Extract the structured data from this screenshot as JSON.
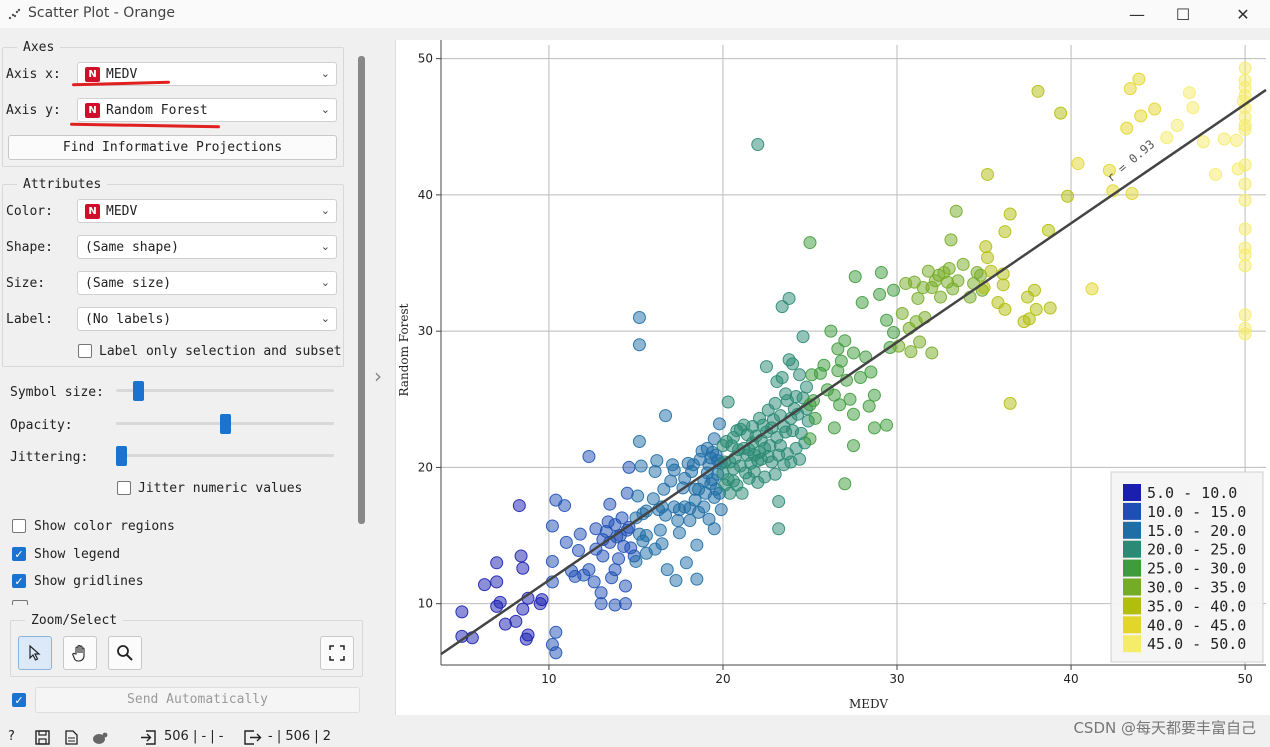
{
  "window": {
    "title": "Scatter Plot - Orange",
    "minimize_glyph": "—",
    "maximize_glyph": "☐",
    "close_glyph": "✕"
  },
  "axes_group": {
    "title": "Axes",
    "axis_x_label": "Axis x:",
    "axis_x_value": "MEDV",
    "axis_y_label": "Axis y:",
    "axis_y_value": "Random Forest",
    "type_badge": "N",
    "find_projections_label": "Find Informative Projections"
  },
  "attributes_group": {
    "title": "Attributes",
    "color_label": "Color:",
    "color_value": "MEDV",
    "shape_label": "Shape:",
    "shape_value": "(Same shape)",
    "size_label": "Size:",
    "size_value": "(Same size)",
    "label_label": "Label:",
    "label_value": "(No labels)",
    "label_only_selection": "Label only selection and subset"
  },
  "sliders": {
    "symbol_size_label": "Symbol size:",
    "symbol_size_level": 0.08,
    "opacity_label": "Opacity:",
    "opacity_level": 0.5,
    "jittering_label": "Jittering:",
    "jittering_level": 0.0,
    "jitter_numeric_label": "Jitter numeric values"
  },
  "checkboxes": {
    "show_color_regions": "Show color regions",
    "show_color_regions_checked": false,
    "show_legend": "Show legend",
    "show_legend_checked": true,
    "show_gridlines": "Show gridlines",
    "show_gridlines_checked": true
  },
  "zoom_select": {
    "title": "Zoom/Select",
    "select_icon": "cursor-arrow-icon",
    "pan_icon": "hand-icon",
    "zoom_icon": "magnifier-icon",
    "fit_icon": "fullscreen-icon"
  },
  "send": {
    "checked": true,
    "label": "Send Automatically"
  },
  "statusbar": {
    "input_summary": "506 | - | -",
    "output_summary": "- | 506 | 2"
  },
  "watermark": "CSDN @每天都要丰富自己",
  "chart_data": {
    "type": "scatter",
    "xlabel": "MEDV",
    "ylabel": "Random Forest",
    "xlim": [
      3.8,
      51.2
    ],
    "ylim": [
      5.5,
      51
    ],
    "xticks": [
      10,
      20,
      30,
      40,
      50
    ],
    "yticks": [
      10,
      20,
      30,
      40,
      50
    ],
    "grid": true,
    "regression": {
      "label": "r = 0.93",
      "x": [
        3.8,
        51.2
      ],
      "y": [
        6.3,
        47.7
      ]
    },
    "legend": {
      "placement": "bottom-right",
      "items": [
        {
          "label": "5.0 - 10.0",
          "color": "#1a1fb0"
        },
        {
          "label": "10.0 - 15.0",
          "color": "#1f4fb5"
        },
        {
          "label": "15.0 - 20.0",
          "color": "#1f6ea6"
        },
        {
          "label": "20.0 - 25.0",
          "color": "#2a8a74"
        },
        {
          "label": "25.0 - 30.0",
          "color": "#3e9c3c"
        },
        {
          "label": "30.0 - 35.0",
          "color": "#75ac25"
        },
        {
          "label": "35.0 - 40.0",
          "color": "#b2be0c"
        },
        {
          "label": "40.0 - 45.0",
          "color": "#e2d62a"
        },
        {
          "label": "45.0 - 50.0",
          "color": "#f5ec6a"
        }
      ]
    },
    "points": [
      [
        5,
        9.4
      ],
      [
        5,
        7.6
      ],
      [
        5.6,
        7.5
      ],
      [
        6.3,
        11.4
      ],
      [
        7,
        13
      ],
      [
        7,
        11.6
      ],
      [
        7.2,
        10.1
      ],
      [
        7,
        9.8
      ],
      [
        7.5,
        8.5
      ],
      [
        8.4,
        13.5
      ],
      [
        8.3,
        17.2
      ],
      [
        8.5,
        12.6
      ],
      [
        8.8,
        10.4
      ],
      [
        8.5,
        9.6
      ],
      [
        8.1,
        8.7
      ],
      [
        8.7,
        7.4
      ],
      [
        8.8,
        7.7
      ],
      [
        9.5,
        10
      ],
      [
        9.6,
        10.3
      ],
      [
        10.2,
        11.6
      ],
      [
        10.2,
        7
      ],
      [
        10.4,
        7.9
      ],
      [
        10.4,
        6.4
      ],
      [
        10.2,
        13.1
      ],
      [
        10.2,
        15.7
      ],
      [
        10.4,
        17.6
      ],
      [
        10.9,
        17.2
      ],
      [
        11,
        14.5
      ],
      [
        11.3,
        12.4
      ],
      [
        11.5,
        12
      ],
      [
        11.7,
        13.9
      ],
      [
        11.8,
        15.1
      ],
      [
        12,
        12.1
      ],
      [
        12.3,
        12.5
      ],
      [
        12.3,
        20.8
      ],
      [
        12.6,
        11.6
      ],
      [
        12.7,
        15.5
      ],
      [
        12.7,
        14
      ],
      [
        13,
        10
      ],
      [
        13,
        10.8
      ],
      [
        13.1,
        14.7
      ],
      [
        13.1,
        13.5
      ],
      [
        13.3,
        15.3
      ],
      [
        13.4,
        16
      ],
      [
        13.5,
        17.3
      ],
      [
        13.5,
        14.5
      ],
      [
        13.6,
        11.9
      ],
      [
        13.8,
        12.5
      ],
      [
        13.8,
        15.8
      ],
      [
        13.8,
        9.9
      ],
      [
        13.9,
        14.9
      ],
      [
        14,
        13.3
      ],
      [
        14.1,
        15
      ],
      [
        14.2,
        16.3
      ],
      [
        14.3,
        14.2
      ],
      [
        14.4,
        11.3
      ],
      [
        14.4,
        10
      ],
      [
        14.5,
        15.4
      ],
      [
        14.5,
        18.1
      ],
      [
        14.6,
        15.6
      ],
      [
        14.6,
        20
      ],
      [
        14.7,
        14.1
      ],
      [
        14.9,
        13.5
      ],
      [
        15,
        16.3
      ],
      [
        15,
        13.1
      ],
      [
        15.1,
        17.9
      ],
      [
        15.2,
        15.1
      ],
      [
        15.2,
        21.9
      ],
      [
        15.2,
        31
      ],
      [
        15.2,
        29
      ],
      [
        15.3,
        20.1
      ],
      [
        15.4,
        16.6
      ],
      [
        15.4,
        14.6
      ],
      [
        15.6,
        13.7
      ],
      [
        15.6,
        16.8
      ],
      [
        15.6,
        15
      ],
      [
        16,
        17.7
      ],
      [
        16.1,
        19.7
      ],
      [
        16.1,
        14
      ],
      [
        16.2,
        20.5
      ],
      [
        16.3,
        16.9
      ],
      [
        16.4,
        15.4
      ],
      [
        16.5,
        17.1
      ],
      [
        16.5,
        14.4
      ],
      [
        16.6,
        18.4
      ],
      [
        16.7,
        23.8
      ],
      [
        16.7,
        16.5
      ],
      [
        16.8,
        12.5
      ],
      [
        17,
        19
      ],
      [
        17.1,
        20.2
      ],
      [
        17.2,
        17.1
      ],
      [
        17.2,
        19.8
      ],
      [
        17.3,
        11.7
      ],
      [
        17.4,
        16.1
      ],
      [
        17.5,
        16.9
      ],
      [
        17.5,
        15.2
      ],
      [
        17.7,
        18.5
      ],
      [
        17.8,
        19.2
      ],
      [
        17.8,
        17.1
      ],
      [
        17.9,
        13
      ],
      [
        18,
        20.3
      ],
      [
        18.1,
        17
      ],
      [
        18.1,
        16.1
      ],
      [
        18.2,
        19.7
      ],
      [
        18.3,
        20.2
      ],
      [
        18.4,
        18.4
      ],
      [
        18.4,
        17.6
      ],
      [
        18.5,
        14.3
      ],
      [
        18.5,
        11.8
      ],
      [
        18.6,
        16.7
      ],
      [
        18.6,
        18.4
      ],
      [
        18.7,
        20.6
      ],
      [
        18.8,
        21.2
      ],
      [
        18.9,
        19
      ],
      [
        18.9,
        17.1
      ],
      [
        19,
        18.1
      ],
      [
        19.1,
        21.4
      ],
      [
        19.1,
        19.6
      ],
      [
        19.2,
        20.2
      ],
      [
        19.2,
        16.2
      ],
      [
        19.3,
        20.7
      ],
      [
        19.3,
        18.8
      ],
      [
        19.4,
        21.1
      ],
      [
        19.4,
        19.1
      ],
      [
        19.5,
        22.1
      ],
      [
        19.5,
        17.8
      ],
      [
        19.5,
        15.5
      ],
      [
        19.6,
        20.9
      ],
      [
        19.6,
        18.4
      ],
      [
        19.7,
        19.5
      ],
      [
        19.7,
        20.5
      ],
      [
        19.8,
        23.2
      ],
      [
        19.8,
        18.1
      ],
      [
        19.9,
        20.3
      ],
      [
        19.9,
        16.9
      ],
      [
        20,
        19.6
      ],
      [
        20,
        21.6
      ],
      [
        20.1,
        20.4
      ],
      [
        20.1,
        18.7
      ],
      [
        20.2,
        21.9
      ],
      [
        20.3,
        19.1
      ],
      [
        20.3,
        24.8
      ],
      [
        20.4,
        20.4
      ],
      [
        20.4,
        18.1
      ],
      [
        20.5,
        21.6
      ],
      [
        20.6,
        22.2
      ],
      [
        20.6,
        19.9
      ],
      [
        20.6,
        19
      ],
      [
        20.7,
        20.7
      ],
      [
        20.8,
        22.7
      ],
      [
        20.8,
        18.7
      ],
      [
        20.9,
        21.3
      ],
      [
        21,
        20.1
      ],
      [
        21,
        22.8
      ],
      [
        21.1,
        18.1
      ],
      [
        21.2,
        21.4
      ],
      [
        21.2,
        23.1
      ],
      [
        21.3,
        19.6
      ],
      [
        21.4,
        20.9
      ],
      [
        21.4,
        22.4
      ],
      [
        21.5,
        21.3
      ],
      [
        21.5,
        19.2
      ],
      [
        21.6,
        20.3
      ],
      [
        21.7,
        23
      ],
      [
        21.7,
        21.8
      ],
      [
        21.8,
        19.7
      ],
      [
        21.8,
        20.9
      ],
      [
        21.9,
        22.3
      ],
      [
        22,
        20.5
      ],
      [
        22,
        43.7
      ],
      [
        22,
        18.9
      ],
      [
        22.1,
        23.6
      ],
      [
        22.1,
        21.1
      ],
      [
        22.2,
        20.6
      ],
      [
        22.2,
        22
      ],
      [
        22.3,
        23.1
      ],
      [
        22.4,
        21.4
      ],
      [
        22.4,
        19.3
      ],
      [
        22.5,
        27.4
      ],
      [
        22.5,
        22.6
      ],
      [
        22.6,
        20.8
      ],
      [
        22.6,
        24.2
      ],
      [
        22.7,
        21.6
      ],
      [
        22.8,
        22.9
      ],
      [
        22.8,
        20.4
      ],
      [
        22.9,
        23.5
      ],
      [
        23,
        19.5
      ],
      [
        23,
        24.7
      ],
      [
        23.1,
        22.2
      ],
      [
        23.1,
        26.3
      ],
      [
        23.2,
        20.9
      ],
      [
        23.2,
        15.5
      ],
      [
        23.2,
        17.5
      ],
      [
        23.3,
        23.8
      ],
      [
        23.3,
        21.6
      ],
      [
        23.4,
        31.8
      ],
      [
        23.4,
        26.6
      ],
      [
        23.5,
        23
      ],
      [
        23.5,
        20.2
      ],
      [
        23.6,
        25.4
      ],
      [
        23.6,
        22.6
      ],
      [
        23.7,
        24.9
      ],
      [
        23.7,
        21
      ],
      [
        23.8,
        32.4
      ],
      [
        23.8,
        27.9
      ],
      [
        23.9,
        23.6
      ],
      [
        23.9,
        20.4
      ],
      [
        24,
        27.6
      ],
      [
        24,
        22.7
      ],
      [
        24.1,
        24.3
      ],
      [
        24.2,
        25.2
      ],
      [
        24.2,
        21.4
      ],
      [
        24.3,
        23.9
      ],
      [
        24.4,
        26.8
      ],
      [
        24.4,
        20.6
      ],
      [
        24.5,
        22.5
      ],
      [
        24.6,
        25.1
      ],
      [
        24.6,
        29.6
      ],
      [
        24.7,
        21.8
      ],
      [
        24.8,
        24.3
      ],
      [
        24.8,
        25.9
      ],
      [
        24.9,
        23.4
      ],
      [
        25,
        36.5
      ],
      [
        25,
        24.6
      ],
      [
        25,
        22.1
      ],
      [
        25.1,
        26.8
      ],
      [
        25.2,
        24.9
      ],
      [
        25.3,
        23.6
      ],
      [
        25.6,
        26.9
      ],
      [
        25.8,
        27.5
      ],
      [
        26,
        25.7
      ],
      [
        26.2,
        30
      ],
      [
        26.4,
        25.3
      ],
      [
        26.4,
        22.9
      ],
      [
        26.6,
        28.7
      ],
      [
        26.6,
        27.1
      ],
      [
        26.7,
        24.6
      ],
      [
        26.8,
        27.8
      ],
      [
        27,
        29.3
      ],
      [
        27,
        18.8
      ],
      [
        27.1,
        26.4
      ],
      [
        27.3,
        25
      ],
      [
        27.5,
        28.4
      ],
      [
        27.5,
        23.9
      ],
      [
        27.5,
        21.6
      ],
      [
        27.6,
        34
      ],
      [
        27.9,
        26.6
      ],
      [
        28,
        32.1
      ],
      [
        28.2,
        28.1
      ],
      [
        28.4,
        24.5
      ],
      [
        28.5,
        27
      ],
      [
        28.7,
        25.3
      ],
      [
        28.7,
        22.9
      ],
      [
        29,
        32.7
      ],
      [
        29.1,
        34.3
      ],
      [
        29.4,
        23.1
      ],
      [
        29.4,
        30.8
      ],
      [
        29.6,
        28.8
      ],
      [
        29.8,
        33
      ],
      [
        29.8,
        29.9
      ],
      [
        30.1,
        28.9
      ],
      [
        30.3,
        31.3
      ],
      [
        30.5,
        33.5
      ],
      [
        30.7,
        30.2
      ],
      [
        30.8,
        28.5
      ],
      [
        31,
        33.6
      ],
      [
        31.1,
        30.7
      ],
      [
        31.2,
        32.4
      ],
      [
        31.3,
        29.2
      ],
      [
        31.5,
        33.2
      ],
      [
        31.6,
        31
      ],
      [
        31.8,
        34.4
      ],
      [
        32,
        33.2
      ],
      [
        32,
        28.4
      ],
      [
        32.2,
        33.7
      ],
      [
        32.4,
        34.1
      ],
      [
        32.5,
        32.5
      ],
      [
        32.7,
        34.3
      ],
      [
        32.9,
        33.6
      ],
      [
        33,
        34.6
      ],
      [
        33.1,
        36.7
      ],
      [
        33.2,
        33.1
      ],
      [
        33.4,
        38.8
      ],
      [
        33.5,
        33.7
      ],
      [
        33.8,
        34.9
      ],
      [
        34.2,
        32.5
      ],
      [
        34.4,
        33.5
      ],
      [
        34.6,
        34.3
      ],
      [
        34.8,
        34.1
      ],
      [
        34.9,
        33
      ],
      [
        35,
        33.2
      ],
      [
        35.1,
        36.2
      ],
      [
        35.2,
        35.4
      ],
      [
        35.2,
        41.5
      ],
      [
        35.4,
        34.4
      ],
      [
        35.8,
        32.1
      ],
      [
        36.1,
        33.4
      ],
      [
        36.1,
        34.2
      ],
      [
        36.2,
        37.3
      ],
      [
        36.2,
        31.6
      ],
      [
        36.5,
        38.6
      ],
      [
        36.5,
        24.7
      ],
      [
        37.3,
        30.7
      ],
      [
        37.5,
        32.5
      ],
      [
        37.6,
        30.9
      ],
      [
        37.9,
        33
      ],
      [
        38,
        31.6
      ],
      [
        38.1,
        47.6
      ],
      [
        38.7,
        37.4
      ],
      [
        38.8,
        31.7
      ],
      [
        39.4,
        46
      ],
      [
        39.8,
        39.9
      ],
      [
        40.4,
        42.3
      ],
      [
        41.2,
        33.1
      ],
      [
        42.2,
        41.8
      ],
      [
        42.4,
        40.3
      ],
      [
        43.2,
        44.9
      ],
      [
        43.4,
        47.8
      ],
      [
        43.5,
        40.1
      ],
      [
        43.9,
        48.5
      ],
      [
        44,
        45.8
      ],
      [
        44.8,
        46.3
      ],
      [
        45.5,
        44.2
      ],
      [
        46.1,
        45.1
      ],
      [
        46.8,
        47.5
      ],
      [
        47,
        46.4
      ],
      [
        47.6,
        43.9
      ],
      [
        48.3,
        41.5
      ],
      [
        48.8,
        44.1
      ],
      [
        49.5,
        44
      ],
      [
        49.6,
        41.9
      ],
      [
        49.9,
        46.9
      ],
      [
        50,
        45.1
      ],
      [
        50,
        46.4
      ],
      [
        50,
        47.3
      ],
      [
        50,
        48.4
      ],
      [
        50,
        47.9
      ],
      [
        50,
        49.3
      ],
      [
        50,
        44.8
      ],
      [
        50,
        42.2
      ],
      [
        50,
        40.8
      ],
      [
        50,
        39.6
      ],
      [
        50,
        37.5
      ],
      [
        50,
        35.6
      ],
      [
        50,
        34.8
      ],
      [
        50,
        36.1
      ],
      [
        50,
        31.2
      ],
      [
        50,
        30.2
      ],
      [
        50,
        29.8
      ],
      [
        50,
        45.7
      ]
    ]
  }
}
